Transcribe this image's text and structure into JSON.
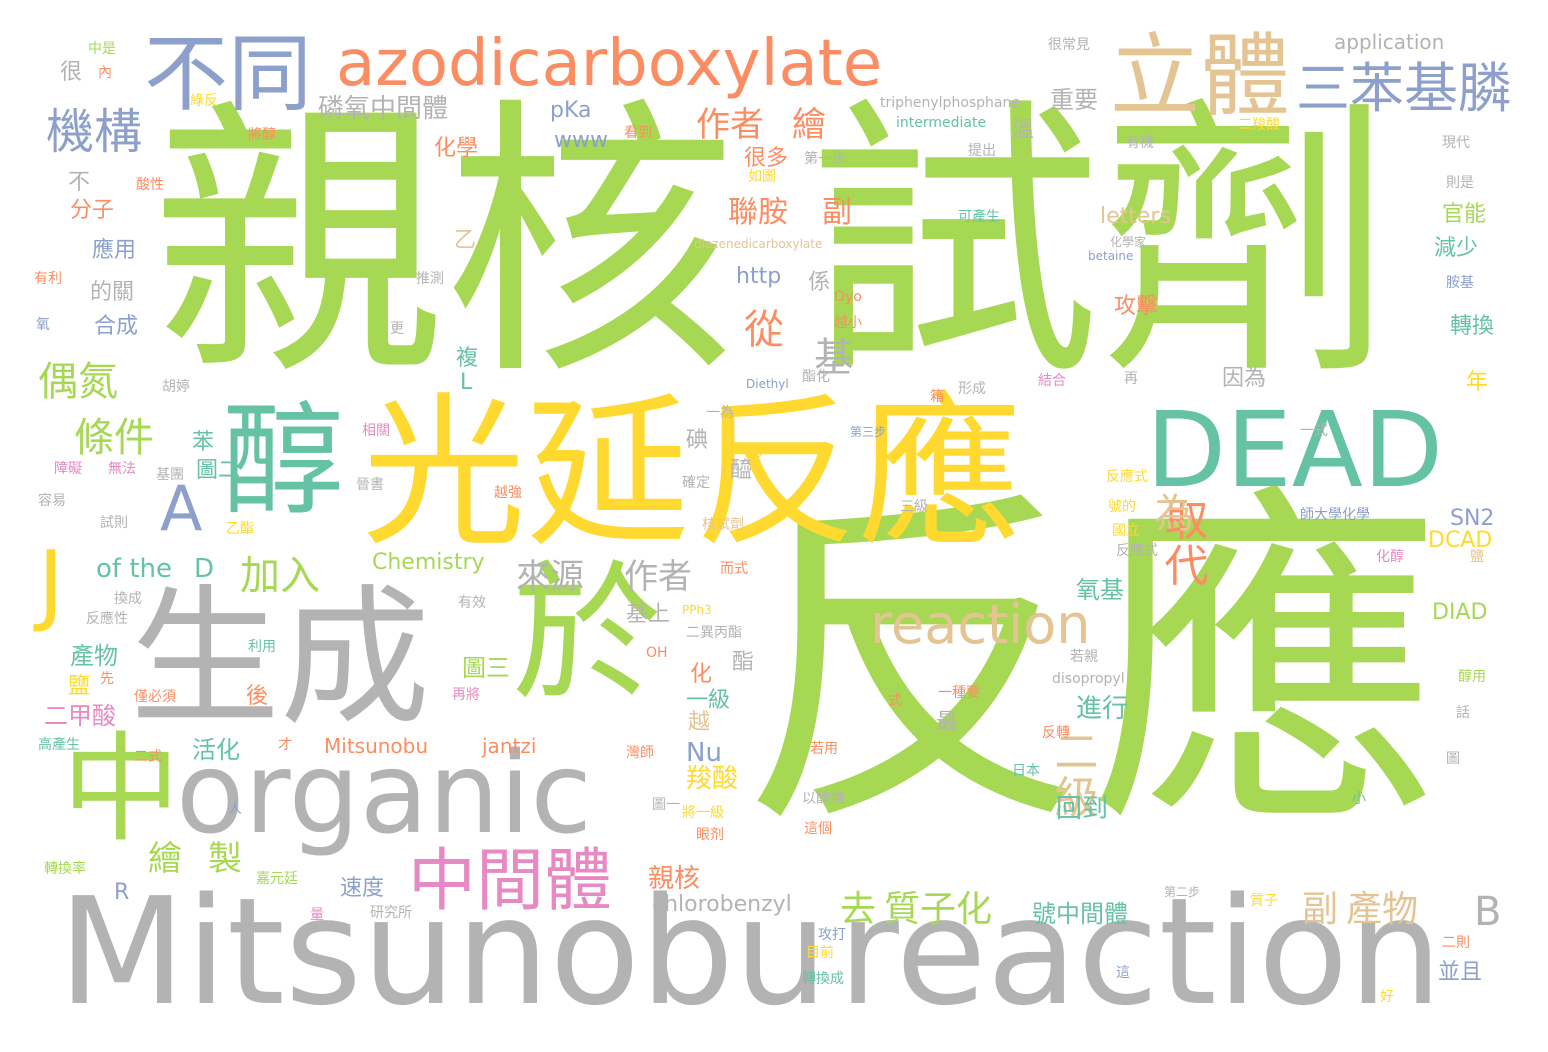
{
  "words": {
    "w01": "反應",
    "w02": "親核",
    "w03": "試劑",
    "w04": "Mitsunobu",
    "w05": "reaction",
    "w06": "光延",
    "w07": "反應",
    "w08": "organic",
    "w09": "生成",
    "w10": "DEAD",
    "w11": "醇",
    "w12": "於",
    "w13": "中",
    "w14": "azodicarboxylate",
    "w15": "立體",
    "w16": "不同",
    "w17": "三苯基膦",
    "w18": "中間體",
    "w19": "機構",
    "w20": "reaction",
    "w21": "J",
    "w22": "A",
    "w23": "二級",
    "w24": "取代",
    "w25": "偶氮",
    "w26": "條件",
    "w27": "加入",
    "w28": "來源",
    "w29": "作者",
    "w30": "去",
    "w31": "質子化",
    "w32": "副",
    "w33": "產物",
    "w34": "B",
    "w35": "作者",
    "w36": "繪",
    "w37": "聯胺",
    "w38": "副",
    "w39": "基",
    "w40": "從",
    "w41": "繪",
    "w42": "製",
    "w43": "磷氧中間體",
    "w44": "重要",
    "w45": "of the",
    "w46": "D",
    "w47": "Chemistry",
    "w48": "application",
    "w49": "pKa",
    "w50": "www",
    "w51": "letters",
    "w52": "http",
    "w53": "SN2",
    "w54": "DCAD",
    "w55": "DIAD",
    "w56": "Mitsunobu",
    "w57": "jantzi",
    "w58": "chlorobenzyl",
    "w59": "號中間體",
    "w60": "速度",
    "w61": "親核",
    "w62": "回到",
    "w63": "進行",
    "w64": "羧酸",
    "w65": "Nu",
    "w66": "活化",
    "w67": "二甲酸",
    "w68": "產物",
    "w69": "圖三",
    "w70": "圖二",
    "w71": "氧基",
    "w72": "因為",
    "w73": "官能",
    "w74": "減少",
    "w75": "轉換",
    "w76": "攻擊",
    "w77": "應用",
    "w78": "分子",
    "w79": "合成",
    "w80": "化學",
    "w81": "很多",
    "w82": "一級",
    "w83": "最",
    "w84": "酯",
    "w85": "化",
    "w86": "基上",
    "w87": "的關",
    "w88": "苯",
    "w89": "後",
    "w90": "年",
    "w91": "並且",
    "w92": "為",
    "w93": "溫",
    "w94": "很常見",
    "w95": "triphenylphosphane",
    "w96": "intermediate",
    "w97": "diazenedicarboxylate",
    "w98": "betaine",
    "w99": "disopropyl",
    "w100": "Diethyl",
    "w101": "PPh3",
    "w102": "OH",
    "w103": "R",
    "w104": "L",
    "w105": "Oyo",
    "w106": "第一步",
    "w107": "第二步",
    "w108": "第三步",
    "w109": "二羧酸",
    "w110": "提出",
    "w111": "有機",
    "w112": "現代",
    "w113": "則是",
    "w114": "胺基",
    "w115": "化學家",
    "w116": "可產生",
    "w117": "推測",
    "w118": "看到",
    "w119": "很",
    "w120": "中是",
    "w121": "內",
    "w122": "綠反",
    "w123": "將醇",
    "w124": "酸性",
    "w125": "有利",
    "w126": "氧",
    "w127": "乙",
    "w128": "不",
    "w129": "鹽",
    "w130": "先",
    "w131": "二式",
    "w132": "才",
    "w133": "高產生",
    "w134": "人",
    "w135": "轉換率",
    "w136": "量",
    "w137": "研究所",
    "w138": "目前",
    "w139": "轉換成",
    "w140": "好",
    "w141": "二則",
    "w142": "質子",
    "w143": "這",
    "w144": "小",
    "w145": "圖",
    "w146": "話",
    "w147": "醇用",
    "w148": "若親",
    "w149": "日本",
    "w150": "反轉",
    "w151": "以醇類",
    "w152": "這個",
    "w153": "眼剂",
    "w154": "圖一",
    "w155": "將一級",
    "w156": "攻打",
    "w157": "嘉元廷",
    "w158": "灣師",
    "w159": "再將",
    "w160": "僅必須",
    "w161": "二異丙酯",
    "w162": "有效",
    "w163": "利用",
    "w164": "反應性",
    "w165": "換成",
    "w166": "而式",
    "w167": "核試劑",
    "w168": "確定",
    "w169": "一步",
    "w170": "越強",
    "w171": "乙酯",
    "w172": "試則",
    "w173": "容易",
    "w174": "障礙",
    "w175": "無法",
    "w176": "基團",
    "w177": "晉書",
    "w178": "胡婷",
    "w179": "相關",
    "w180": "更",
    "w181": "越小",
    "w182": "酯化",
    "w183": "一為",
    "w184": "形成",
    "w185": "結合",
    "w186": "箱",
    "w187": "再",
    "w188": "三級",
    "w189": "反應式",
    "w190": "號的",
    "w191": "國立",
    "w192": "一式",
    "w193": "師大學化學",
    "w194": "化醇",
    "w195": "若用",
    "w196": "一種要",
    "w197": "式",
    "w198": "係",
    "w199": "越",
    "w200": "碘",
    "w201": "醯",
    "w202": "複",
    "w203": "如圖",
    "w204": "反應式",
    "w205": "鹽"
  },
  "palette": {
    "green": "#a6d854",
    "yellow": "#ffd92f",
    "gray": "#b3b3b3",
    "teal": "#66c2a5",
    "orange": "#fc8d62",
    "blue": "#8da0cb",
    "tan": "#e5c494",
    "pink": "#e78ac3"
  }
}
